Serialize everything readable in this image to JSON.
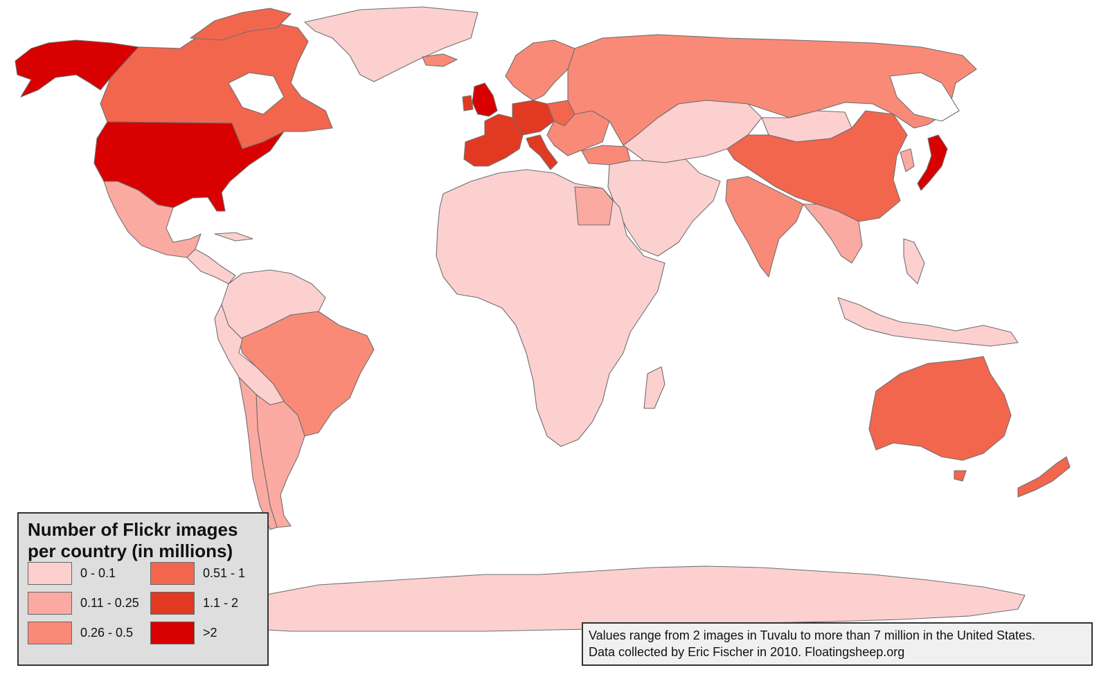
{
  "legend": {
    "title_line1": "Number of Flickr images",
    "title_line2": "per country (in millions)",
    "classes": [
      {
        "label": "0 - 0.1",
        "color": "#fdd0d0"
      },
      {
        "label": "0.11 - 0.25",
        "color": "#fbaaa2"
      },
      {
        "label": "0.26 - 0.5",
        "color": "#f98a77"
      },
      {
        "label": "0.51 - 1",
        "color": "#f2664e"
      },
      {
        "label": "1.1 - 2",
        "color": "#e23a22"
      },
      {
        "label": ">2",
        "color": "#d80000"
      }
    ]
  },
  "note": {
    "line1": "Values range from 2 images in Tuvalu to more than 7 million in the United States.",
    "line2": "Data collected by Eric Fischer in 2010. Floatingsheep.org"
  },
  "colors": {
    "background": "#ffffff",
    "border": "#6e6e6e",
    "legend_bg": "#dedede",
    "note_bg": "#f0f0f0"
  }
}
